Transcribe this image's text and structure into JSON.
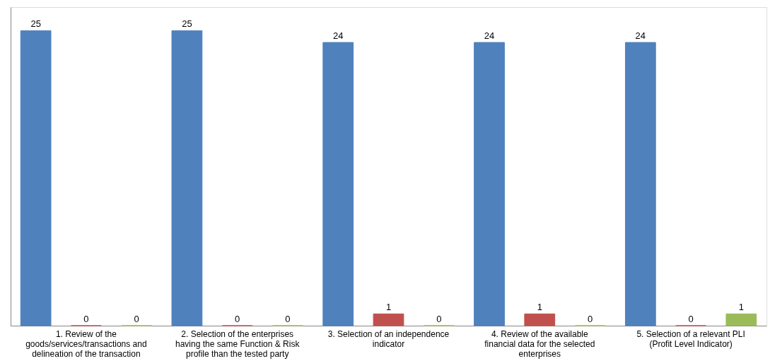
{
  "chart_data": {
    "type": "bar",
    "categories": [
      "1. Review of the goods/services/transactions and delineation of the transaction",
      "2. Selection of the enterprises having the same Function & Risk profile than the tested party",
      "3. Selection of an independence indicator",
      "4. Review of the available financial data for the selected enterprises",
      "5. Selection of a relevant PLI (Profit Level Indicator)"
    ],
    "series": [
      {
        "color": "#4f81bd",
        "values": [
          25,
          25,
          24,
          24,
          24
        ]
      },
      {
        "color": "#c0504d",
        "values": [
          0,
          0,
          1,
          1,
          0
        ]
      },
      {
        "color": "#9bbb59",
        "values": [
          0,
          0,
          0,
          0,
          1
        ]
      }
    ],
    "data_labels": true,
    "grid": false,
    "legend": false,
    "tick_labels": "x"
  }
}
